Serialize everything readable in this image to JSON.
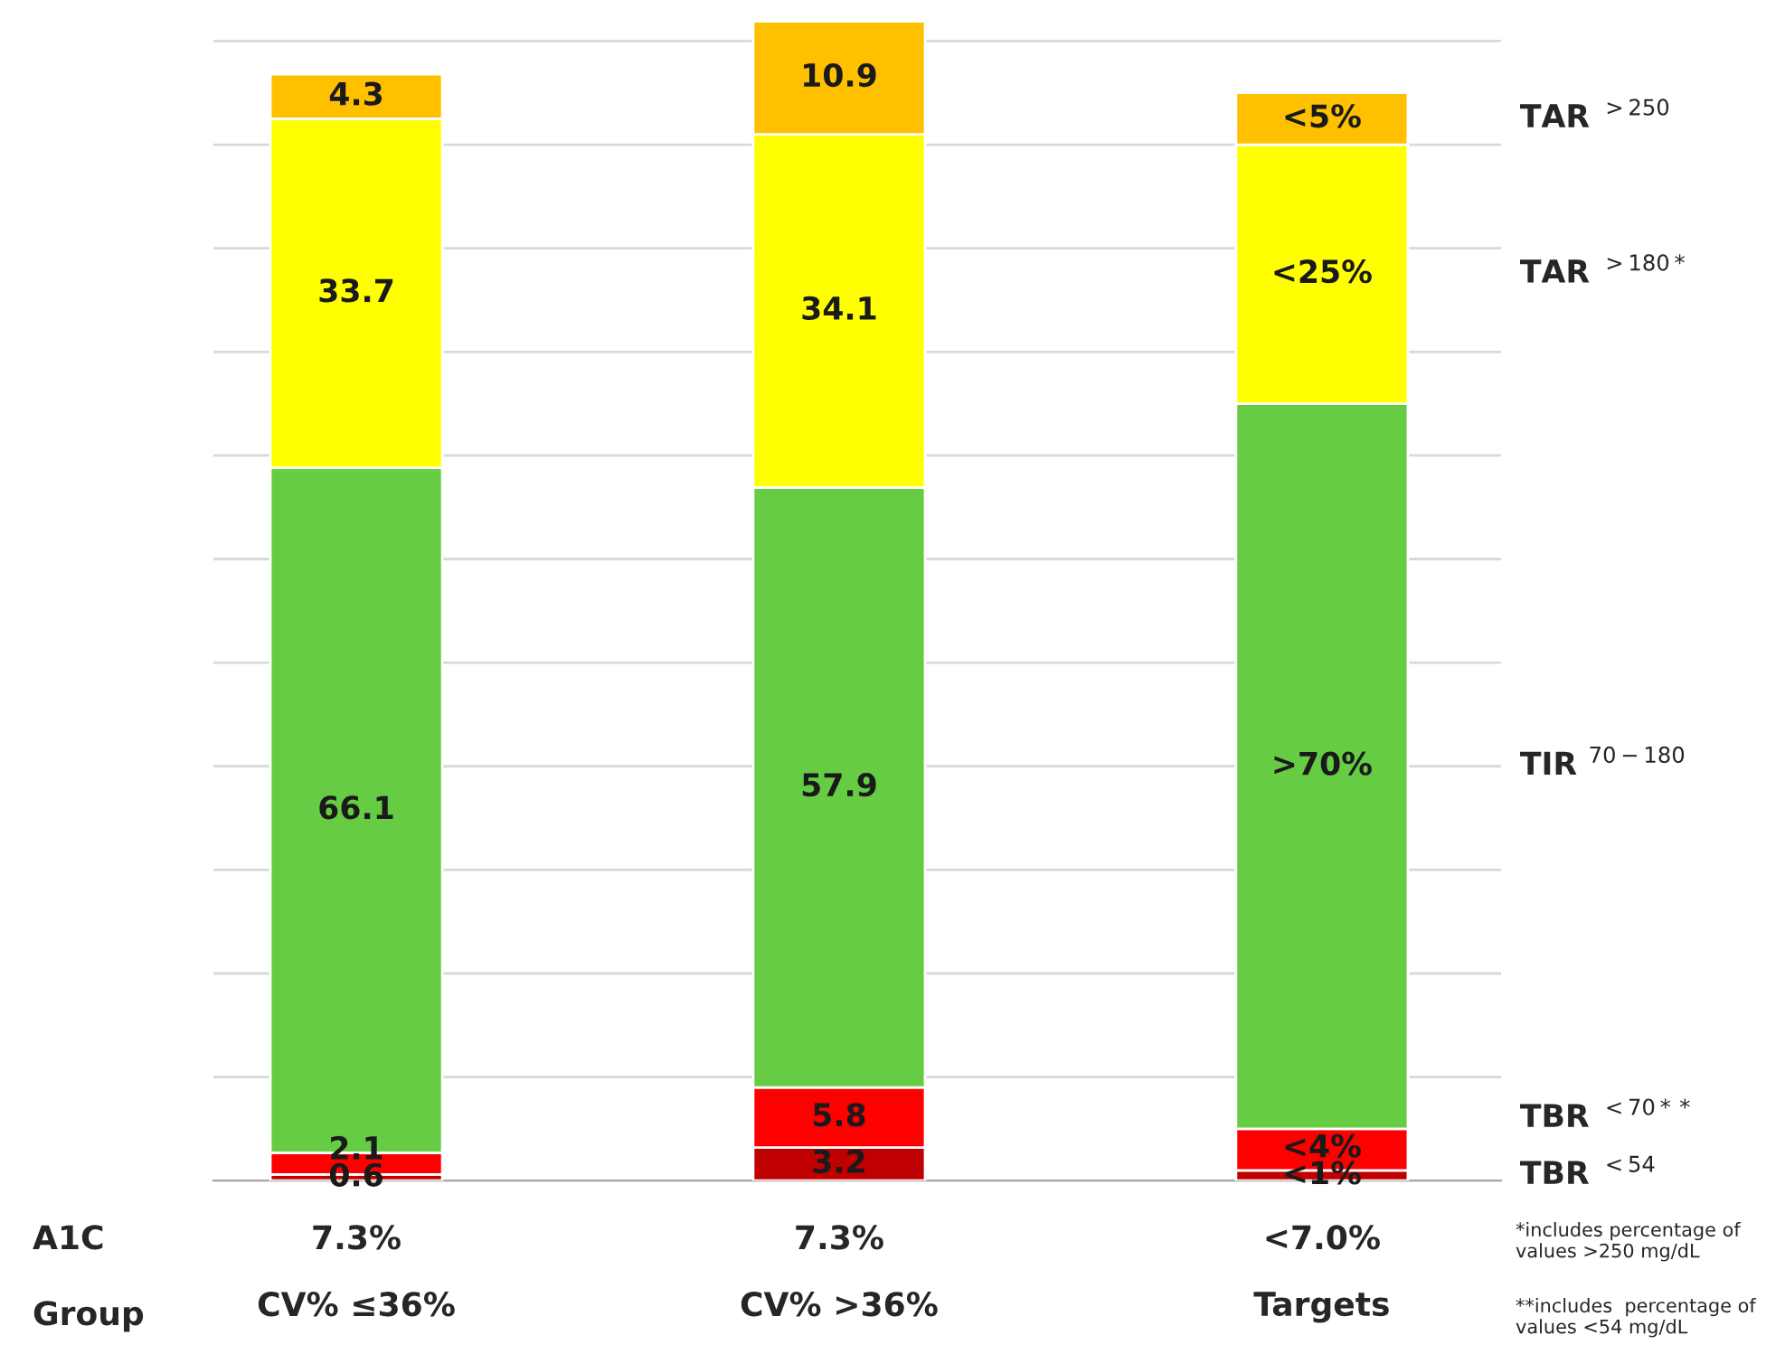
{
  "chart_data": {
    "type": "bar",
    "stacked": true,
    "categories": [
      "CV% ≤36%",
      "CV% >36%",
      "Targets"
    ],
    "xlabel": "Group",
    "series": [
      {
        "name": "TBR $^{<54}$",
        "color": "#c00000",
        "values": [
          0.6,
          3.2,
          1
        ],
        "value_labels": [
          "0.6",
          "3.2",
          "<1%"
        ]
      },
      {
        "name": "TBR $^{<70**}$",
        "color": "#ff0000",
        "values": [
          2.1,
          5.8,
          4
        ],
        "value_labels": [
          "2.1",
          "5.8",
          "<4%"
        ]
      },
      {
        "name": "TIR $^{70−180}$",
        "color": "#66cc44",
        "values": [
          66.1,
          57.9,
          70
        ],
        "value_labels": [
          "66.1",
          "57.9",
          ">70%"
        ]
      },
      {
        "name": "TAR $^{>180*}$",
        "color": "#ffff00",
        "values": [
          33.7,
          34.1,
          25
        ],
        "value_labels": [
          "33.7",
          "34.1",
          "<25%"
        ]
      },
      {
        "name": "TAR $^{>250}$",
        "color": "#ffc000",
        "values": [
          4.3,
          10.9,
          5
        ],
        "value_labels": [
          "4.3",
          "10.9",
          "<5%"
        ]
      }
    ],
    "ylim": [
      0,
      112
    ],
    "yticks": [
      {
        "value": 0,
        "label": null
      },
      {
        "value": 10,
        "label": null
      },
      {
        "value": 20,
        "label": null
      },
      {
        "value": 30,
        "label": null
      },
      {
        "value": 40,
        "label": null
      },
      {
        "value": 50,
        "label": null
      },
      {
        "value": 60,
        "label": null
      },
      {
        "value": 70,
        "label": null
      },
      {
        "value": 80,
        "label": null
      },
      {
        "value": 90,
        "label": null
      },
      {
        "value": 100,
        "label": null
      },
      {
        "value": 110,
        "label": null
      }
    ],
    "grid": "y",
    "tick_labels": "x",
    "annotations": [
      "A1C",
      "7.3%",
      "7.3%",
      "<7.0%",
      "*includes percentage of values >250 mg/dL",
      "**includes  percentage of values <54 mg/dL"
    ]
  }
}
